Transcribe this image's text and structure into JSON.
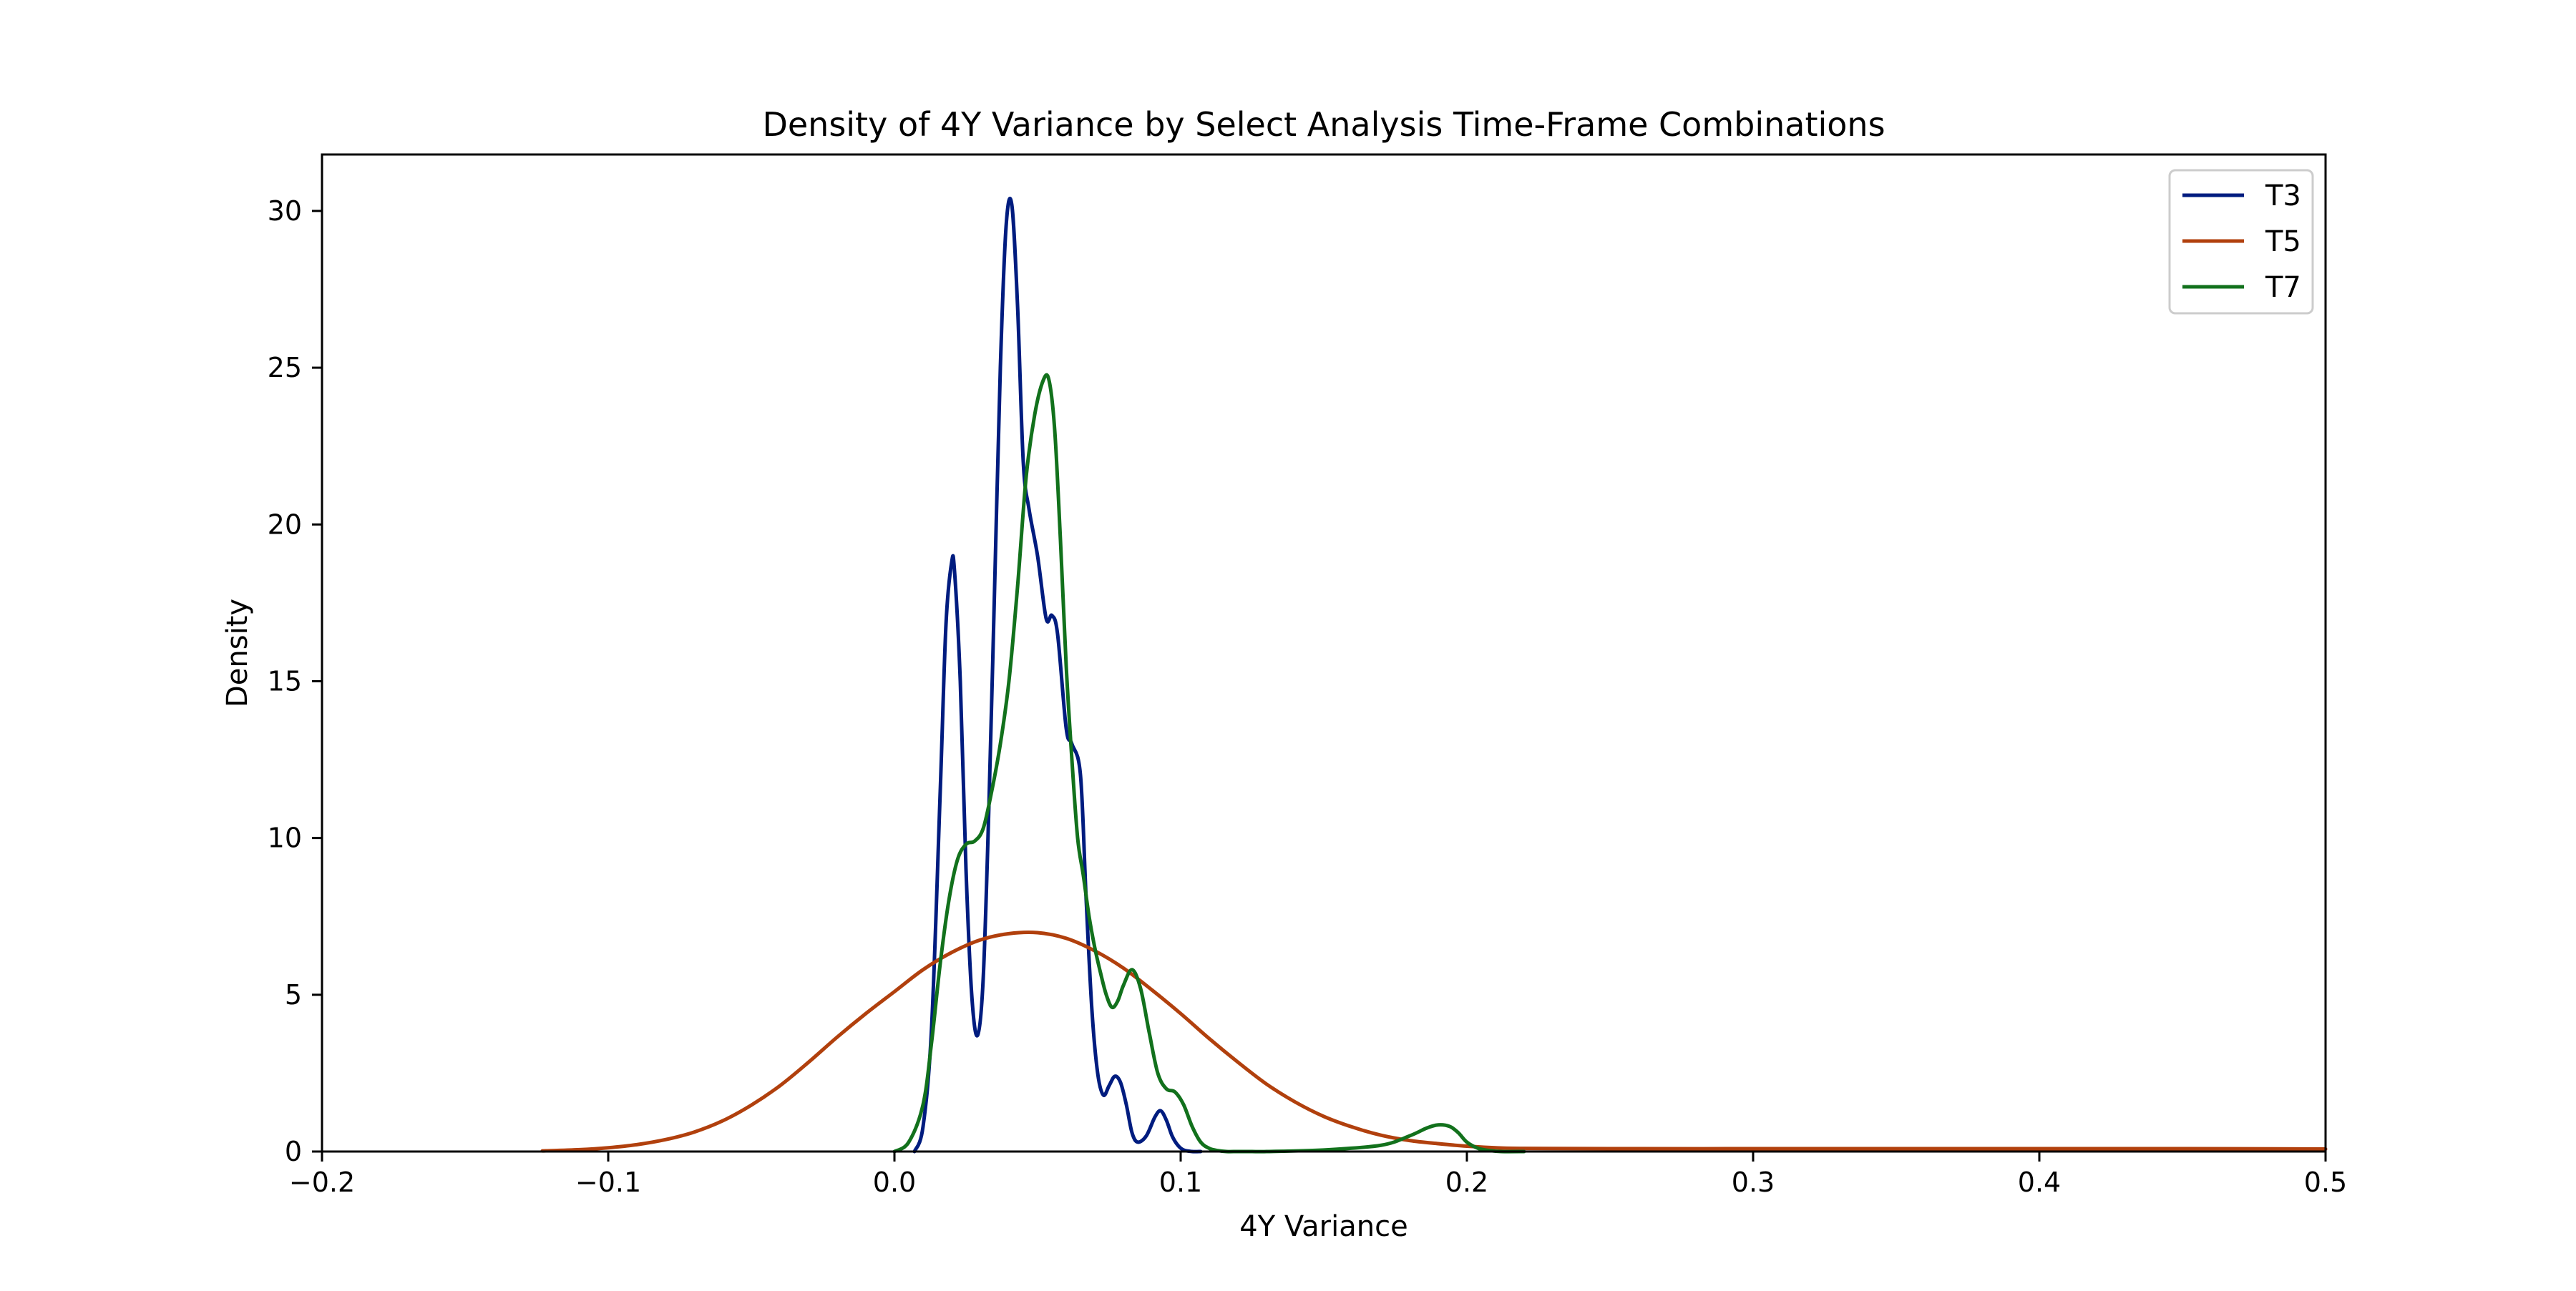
{
  "chart_data": {
    "type": "line",
    "title": "Density of 4Y Variance by Select Analysis Time-Frame Combinations",
    "xlabel": "4Y Variance",
    "ylabel": "Density",
    "xlim": [
      -0.2,
      0.5
    ],
    "ylim": [
      0,
      31.8
    ],
    "grid": false,
    "legend_position": "top-right",
    "x_ticks": [
      -0.2,
      -0.1,
      0.0,
      0.1,
      0.2,
      0.3,
      0.4,
      0.5
    ],
    "x_tick_labels": [
      "−0.2",
      "−0.1",
      "0.0",
      "0.1",
      "0.2",
      "0.3",
      "0.4",
      "0.5"
    ],
    "y_ticks": [
      0,
      5,
      10,
      15,
      20,
      25,
      30
    ],
    "y_tick_labels": [
      "0",
      "5",
      "10",
      "15",
      "20",
      "25",
      "30"
    ],
    "series": [
      {
        "name": "T3",
        "color": "#001c7f",
        "x": [
          0.007,
          0.01,
          0.013,
          0.016,
          0.018,
          0.02,
          0.021,
          0.023,
          0.025,
          0.027,
          0.029,
          0.031,
          0.033,
          0.035,
          0.037,
          0.039,
          0.041,
          0.043,
          0.045,
          0.047,
          0.05,
          0.053,
          0.055,
          0.057,
          0.06,
          0.062,
          0.065,
          0.067,
          0.069,
          0.071,
          0.073,
          0.075,
          0.077,
          0.079,
          0.081,
          0.083,
          0.085,
          0.088,
          0.091,
          0.093,
          0.095,
          0.097,
          0.099,
          0.101,
          0.104,
          0.107
        ],
        "values": [
          0.0,
          0.8,
          4.0,
          11.5,
          16.8,
          18.8,
          18.5,
          15.0,
          9.0,
          5.0,
          3.7,
          5.5,
          11.0,
          18.0,
          25.0,
          29.5,
          30.2,
          27.0,
          22.0,
          20.5,
          19.0,
          17.0,
          17.1,
          16.5,
          13.5,
          13.0,
          12.0,
          8.0,
          4.5,
          2.5,
          1.8,
          2.1,
          2.4,
          2.2,
          1.5,
          0.6,
          0.3,
          0.5,
          1.1,
          1.3,
          1.0,
          0.5,
          0.2,
          0.05,
          0.0,
          0.0
        ]
      },
      {
        "name": "T5",
        "color": "#b1400d",
        "x": [
          -0.123,
          -0.11,
          -0.1,
          -0.09,
          -0.08,
          -0.07,
          -0.06,
          -0.05,
          -0.04,
          -0.03,
          -0.02,
          -0.01,
          0.0,
          0.01,
          0.02,
          0.03,
          0.04,
          0.05,
          0.06,
          0.07,
          0.08,
          0.09,
          0.1,
          0.11,
          0.12,
          0.13,
          0.14,
          0.15,
          0.16,
          0.17,
          0.18,
          0.19,
          0.2,
          0.21,
          0.22,
          0.25,
          0.3,
          0.35,
          0.4,
          0.45,
          0.5
        ],
        "values": [
          0.02,
          0.06,
          0.12,
          0.22,
          0.38,
          0.62,
          0.98,
          1.48,
          2.1,
          2.85,
          3.65,
          4.4,
          5.1,
          5.8,
          6.35,
          6.75,
          6.95,
          6.98,
          6.8,
          6.4,
          5.85,
          5.15,
          4.4,
          3.6,
          2.85,
          2.15,
          1.58,
          1.12,
          0.78,
          0.52,
          0.35,
          0.25,
          0.17,
          0.12,
          0.1,
          0.09,
          0.09,
          0.09,
          0.09,
          0.09,
          0.08
        ]
      },
      {
        "name": "T7",
        "color": "#12711c",
        "x": [
          0.0,
          0.005,
          0.01,
          0.013,
          0.016,
          0.019,
          0.022,
          0.025,
          0.028,
          0.031,
          0.034,
          0.037,
          0.04,
          0.043,
          0.046,
          0.049,
          0.052,
          0.054,
          0.056,
          0.058,
          0.06,
          0.062,
          0.064,
          0.066,
          0.068,
          0.07,
          0.072,
          0.074,
          0.076,
          0.078,
          0.08,
          0.083,
          0.086,
          0.089,
          0.092,
          0.095,
          0.098,
          0.101,
          0.104,
          0.107,
          0.11,
          0.113,
          0.116,
          0.12,
          0.125,
          0.13,
          0.15,
          0.17,
          0.18,
          0.186,
          0.19,
          0.194,
          0.197,
          0.2,
          0.204,
          0.208,
          0.212,
          0.22
        ],
        "values": [
          0.0,
          0.3,
          1.5,
          3.5,
          6.0,
          8.0,
          9.3,
          9.8,
          9.9,
          10.3,
          11.5,
          13.0,
          15.0,
          18.0,
          21.5,
          23.5,
          24.6,
          24.6,
          23.0,
          19.5,
          15.5,
          12.5,
          10.0,
          8.8,
          7.5,
          6.5,
          5.7,
          5.0,
          4.6,
          4.8,
          5.3,
          5.8,
          5.2,
          3.8,
          2.5,
          2.0,
          1.9,
          1.5,
          0.8,
          0.3,
          0.1,
          0.03,
          0.0,
          0.0,
          0.0,
          0.0,
          0.05,
          0.2,
          0.5,
          0.75,
          0.85,
          0.8,
          0.6,
          0.3,
          0.1,
          0.03,
          0.0,
          0.0
        ]
      }
    ]
  }
}
